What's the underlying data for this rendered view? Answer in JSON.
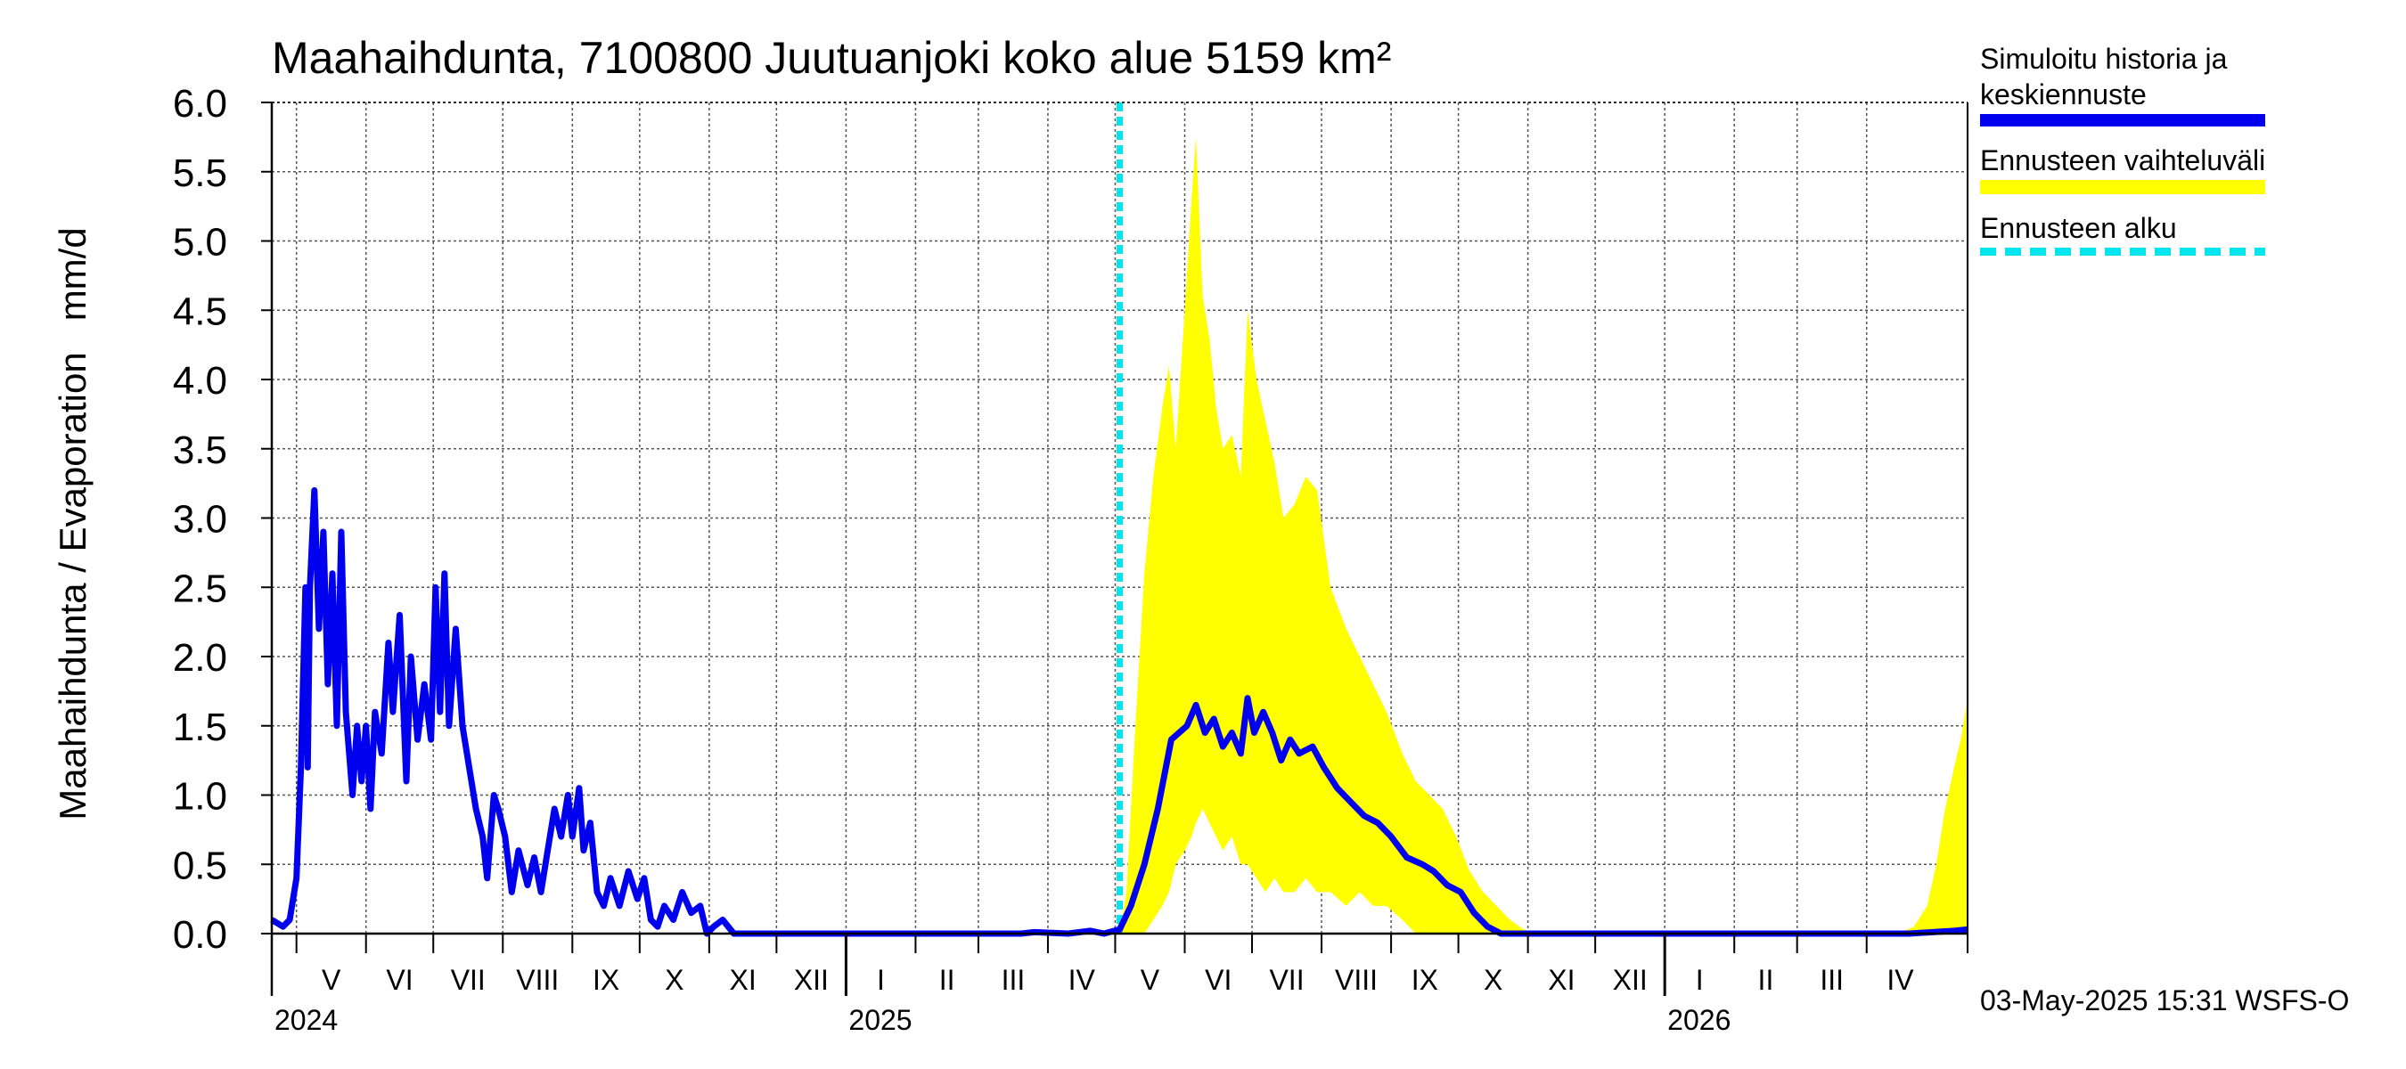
{
  "chart_data": {
    "type": "area",
    "title": "Maahaihdunta, 7100800 Juutuanjoki koko alue 5159 km²",
    "ylabel": "Maahaihdunta / Evaporation   mm/d",
    "xlabel": "",
    "ylim": [
      0,
      6.0
    ],
    "yticks": [
      "0.0",
      "0.5",
      "1.0",
      "1.5",
      "2.0",
      "2.5",
      "3.0",
      "3.5",
      "4.0",
      "4.5",
      "5.0",
      "5.5",
      "6.0"
    ],
    "x_range": [
      "2024-04-20",
      "2026-05-16"
    ],
    "months": [
      {
        "label": "V",
        "start": "2024-05-01",
        "end": "2024-06-01"
      },
      {
        "label": "VI",
        "start": "2024-06-01",
        "end": "2024-07-01"
      },
      {
        "label": "VII",
        "start": "2024-07-01",
        "end": "2024-08-01"
      },
      {
        "label": "VIII",
        "start": "2024-08-01",
        "end": "2024-09-01"
      },
      {
        "label": "IX",
        "start": "2024-09-01",
        "end": "2024-10-01"
      },
      {
        "label": "X",
        "start": "2024-10-01",
        "end": "2024-11-01"
      },
      {
        "label": "XI",
        "start": "2024-11-01",
        "end": "2024-12-01"
      },
      {
        "label": "XII",
        "start": "2024-12-01",
        "end": "2025-01-01"
      },
      {
        "label": "I",
        "start": "2025-01-01",
        "end": "2025-02-01"
      },
      {
        "label": "II",
        "start": "2025-02-01",
        "end": "2025-03-01"
      },
      {
        "label": "III",
        "start": "2025-03-01",
        "end": "2025-04-01"
      },
      {
        "label": "IV",
        "start": "2025-04-01",
        "end": "2025-05-01"
      },
      {
        "label": "V",
        "start": "2025-05-01",
        "end": "2025-06-01"
      },
      {
        "label": "VI",
        "start": "2025-06-01",
        "end": "2025-07-01"
      },
      {
        "label": "VII",
        "start": "2025-07-01",
        "end": "2025-08-01"
      },
      {
        "label": "VIII",
        "start": "2025-08-01",
        "end": "2025-09-01"
      },
      {
        "label": "IX",
        "start": "2025-09-01",
        "end": "2025-10-01"
      },
      {
        "label": "X",
        "start": "2025-10-01",
        "end": "2025-11-01"
      },
      {
        "label": "XI",
        "start": "2025-11-01",
        "end": "2025-12-01"
      },
      {
        "label": "XII",
        "start": "2025-12-01",
        "end": "2026-01-01"
      },
      {
        "label": "I",
        "start": "2026-01-01",
        "end": "2026-02-01"
      },
      {
        "label": "II",
        "start": "2026-02-01",
        "end": "2026-03-01"
      },
      {
        "label": "III",
        "start": "2026-03-01",
        "end": "2026-04-01"
      },
      {
        "label": "IV",
        "start": "2026-04-01",
        "end": "2026-05-01"
      }
    ],
    "years": [
      {
        "label": "2024",
        "date": "2024-04-20"
      },
      {
        "label": "2025",
        "date": "2025-01-01"
      },
      {
        "label": "2026",
        "date": "2026-01-01"
      }
    ],
    "forecast_start": "2025-05-03",
    "series": [
      {
        "name": "Simuloitu historia ja keskiennuste",
        "color": "#0000ee",
        "points": [
          [
            "2024-04-20",
            0.1
          ],
          [
            "2024-04-25",
            0.05
          ],
          [
            "2024-04-28",
            0.1
          ],
          [
            "2024-05-01",
            0.4
          ],
          [
            "2024-05-03",
            1.2
          ],
          [
            "2024-05-05",
            2.5
          ],
          [
            "2024-05-06",
            1.2
          ],
          [
            "2024-05-07",
            2.5
          ],
          [
            "2024-05-09",
            3.2
          ],
          [
            "2024-05-11",
            2.2
          ],
          [
            "2024-05-13",
            2.9
          ],
          [
            "2024-05-15",
            1.8
          ],
          [
            "2024-05-17",
            2.6
          ],
          [
            "2024-05-19",
            1.5
          ],
          [
            "2024-05-21",
            2.9
          ],
          [
            "2024-05-23",
            1.6
          ],
          [
            "2024-05-26",
            1.0
          ],
          [
            "2024-05-28",
            1.5
          ],
          [
            "2024-05-30",
            1.1
          ],
          [
            "2024-06-01",
            1.5
          ],
          [
            "2024-06-03",
            0.9
          ],
          [
            "2024-06-05",
            1.6
          ],
          [
            "2024-06-08",
            1.3
          ],
          [
            "2024-06-11",
            2.1
          ],
          [
            "2024-06-13",
            1.6
          ],
          [
            "2024-06-16",
            2.3
          ],
          [
            "2024-06-19",
            1.1
          ],
          [
            "2024-06-21",
            2.0
          ],
          [
            "2024-06-24",
            1.4
          ],
          [
            "2024-06-27",
            1.8
          ],
          [
            "2024-06-30",
            1.4
          ],
          [
            "2024-07-02",
            2.5
          ],
          [
            "2024-07-04",
            1.6
          ],
          [
            "2024-07-06",
            2.6
          ],
          [
            "2024-07-08",
            1.5
          ],
          [
            "2024-07-11",
            2.2
          ],
          [
            "2024-07-14",
            1.5
          ],
          [
            "2024-07-17",
            1.2
          ],
          [
            "2024-07-20",
            0.9
          ],
          [
            "2024-07-23",
            0.7
          ],
          [
            "2024-07-25",
            0.4
          ],
          [
            "2024-07-28",
            1.0
          ],
          [
            "2024-07-30",
            0.9
          ],
          [
            "2024-08-02",
            0.7
          ],
          [
            "2024-08-05",
            0.3
          ],
          [
            "2024-08-08",
            0.6
          ],
          [
            "2024-08-12",
            0.35
          ],
          [
            "2024-08-15",
            0.55
          ],
          [
            "2024-08-18",
            0.3
          ],
          [
            "2024-08-21",
            0.6
          ],
          [
            "2024-08-24",
            0.9
          ],
          [
            "2024-08-27",
            0.7
          ],
          [
            "2024-08-30",
            1.0
          ],
          [
            "2024-09-01",
            0.7
          ],
          [
            "2024-09-04",
            1.05
          ],
          [
            "2024-09-06",
            0.6
          ],
          [
            "2024-09-09",
            0.8
          ],
          [
            "2024-09-12",
            0.3
          ],
          [
            "2024-09-15",
            0.2
          ],
          [
            "2024-09-18",
            0.4
          ],
          [
            "2024-09-22",
            0.2
          ],
          [
            "2024-09-26",
            0.45
          ],
          [
            "2024-09-30",
            0.25
          ],
          [
            "2024-10-03",
            0.4
          ],
          [
            "2024-10-06",
            0.1
          ],
          [
            "2024-10-09",
            0.05
          ],
          [
            "2024-10-12",
            0.2
          ],
          [
            "2024-10-16",
            0.1
          ],
          [
            "2024-10-20",
            0.3
          ],
          [
            "2024-10-24",
            0.15
          ],
          [
            "2024-10-28",
            0.2
          ],
          [
            "2024-10-31",
            0.0
          ],
          [
            "2024-11-03",
            0.05
          ],
          [
            "2024-11-07",
            0.1
          ],
          [
            "2024-11-12",
            0.0
          ],
          [
            "2024-11-18",
            0.0
          ],
          [
            "2025-03-20",
            0.0
          ],
          [
            "2025-03-26",
            0.01
          ],
          [
            "2025-04-10",
            0.0
          ],
          [
            "2025-04-20",
            0.02
          ],
          [
            "2025-04-26",
            0.0
          ],
          [
            "2025-05-03",
            0.03
          ],
          [
            "2025-05-08",
            0.2
          ],
          [
            "2025-05-14",
            0.5
          ],
          [
            "2025-05-20",
            0.9
          ],
          [
            "2025-05-26",
            1.4
          ],
          [
            "2025-06-02",
            1.5
          ],
          [
            "2025-06-06",
            1.65
          ],
          [
            "2025-06-10",
            1.45
          ],
          [
            "2025-06-14",
            1.55
          ],
          [
            "2025-06-18",
            1.35
          ],
          [
            "2025-06-22",
            1.45
          ],
          [
            "2025-06-26",
            1.3
          ],
          [
            "2025-06-29",
            1.7
          ],
          [
            "2025-07-02",
            1.45
          ],
          [
            "2025-07-06",
            1.6
          ],
          [
            "2025-07-10",
            1.45
          ],
          [
            "2025-07-14",
            1.25
          ],
          [
            "2025-07-18",
            1.4
          ],
          [
            "2025-07-22",
            1.3
          ],
          [
            "2025-07-28",
            1.35
          ],
          [
            "2025-08-02",
            1.2
          ],
          [
            "2025-08-08",
            1.05
          ],
          [
            "2025-08-14",
            0.95
          ],
          [
            "2025-08-20",
            0.85
          ],
          [
            "2025-08-26",
            0.8
          ],
          [
            "2025-09-01",
            0.7
          ],
          [
            "2025-09-08",
            0.55
          ],
          [
            "2025-09-15",
            0.5
          ],
          [
            "2025-09-20",
            0.45
          ],
          [
            "2025-09-26",
            0.35
          ],
          [
            "2025-10-02",
            0.3
          ],
          [
            "2025-10-08",
            0.15
          ],
          [
            "2025-10-14",
            0.05
          ],
          [
            "2025-10-20",
            0.0
          ],
          [
            "2026-04-20",
            0.0
          ],
          [
            "2026-05-10",
            0.02
          ],
          [
            "2026-05-16",
            0.03
          ]
        ]
      },
      {
        "name": "Ennusteen vaihteluväli",
        "color": "#ffff00",
        "band": [
          [
            "2025-05-03",
            0.0,
            0.0
          ],
          [
            "2025-05-06",
            0.0,
            0.3
          ],
          [
            "2025-05-10",
            0.0,
            1.5
          ],
          [
            "2025-05-14",
            0.0,
            2.6
          ],
          [
            "2025-05-18",
            0.1,
            3.3
          ],
          [
            "2025-05-22",
            0.2,
            3.8
          ],
          [
            "2025-05-25",
            0.3,
            4.1
          ],
          [
            "2025-05-28",
            0.5,
            3.5
          ],
          [
            "2025-06-01",
            0.6,
            4.5
          ],
          [
            "2025-06-04",
            0.7,
            5.3
          ],
          [
            "2025-06-06",
            0.8,
            5.75
          ],
          [
            "2025-06-09",
            0.9,
            4.6
          ],
          [
            "2025-06-12",
            0.8,
            4.3
          ],
          [
            "2025-06-15",
            0.7,
            3.8
          ],
          [
            "2025-06-18",
            0.6,
            3.5
          ],
          [
            "2025-06-22",
            0.7,
            3.6
          ],
          [
            "2025-06-26",
            0.5,
            3.3
          ],
          [
            "2025-06-29",
            0.5,
            4.5
          ],
          [
            "2025-07-03",
            0.4,
            4.0
          ],
          [
            "2025-07-07",
            0.3,
            3.7
          ],
          [
            "2025-07-11",
            0.4,
            3.4
          ],
          [
            "2025-07-15",
            0.3,
            3.0
          ],
          [
            "2025-07-20",
            0.3,
            3.1
          ],
          [
            "2025-07-25",
            0.4,
            3.3
          ],
          [
            "2025-07-30",
            0.3,
            3.2
          ],
          [
            "2025-08-05",
            0.3,
            2.5
          ],
          [
            "2025-08-12",
            0.2,
            2.2
          ],
          [
            "2025-08-18",
            0.3,
            2.0
          ],
          [
            "2025-08-24",
            0.2,
            1.8
          ],
          [
            "2025-08-30",
            0.2,
            1.6
          ],
          [
            "2025-09-06",
            0.1,
            1.3
          ],
          [
            "2025-09-12",
            0.0,
            1.1
          ],
          [
            "2025-09-18",
            0.0,
            1.0
          ],
          [
            "2025-09-24",
            0.0,
            0.9
          ],
          [
            "2025-09-30",
            0.0,
            0.7
          ],
          [
            "2025-10-06",
            0.0,
            0.45
          ],
          [
            "2025-10-12",
            0.0,
            0.3
          ],
          [
            "2025-10-18",
            0.0,
            0.2
          ],
          [
            "2025-10-24",
            0.0,
            0.1
          ],
          [
            "2025-10-30",
            0.0,
            0.03
          ],
          [
            "2025-11-05",
            0.0,
            0.0
          ],
          [
            "2026-04-15",
            0.0,
            0.0
          ],
          [
            "2026-04-22",
            0.0,
            0.05
          ],
          [
            "2026-04-28",
            0.0,
            0.2
          ],
          [
            "2026-05-02",
            0.0,
            0.5
          ],
          [
            "2026-05-06",
            0.0,
            0.9
          ],
          [
            "2026-05-10",
            0.0,
            1.2
          ],
          [
            "2026-05-13",
            0.0,
            1.4
          ],
          [
            "2026-05-16",
            0.0,
            1.7
          ]
        ]
      },
      {
        "name": "Ennusteen alku",
        "color": "#00e5ee"
      }
    ]
  },
  "legend": {
    "items": [
      {
        "line1": "Simuloitu historia ja",
        "line2": "keskiennuste",
        "color": "#0000ee"
      },
      {
        "line1": "Ennusteen vaihteluväli",
        "color": "#ffff00"
      },
      {
        "line1": "Ennusteen alku",
        "color": "#00e5ee"
      }
    ]
  },
  "footer": {
    "timestamp": "03-May-2025 15:31 WSFS-O"
  }
}
